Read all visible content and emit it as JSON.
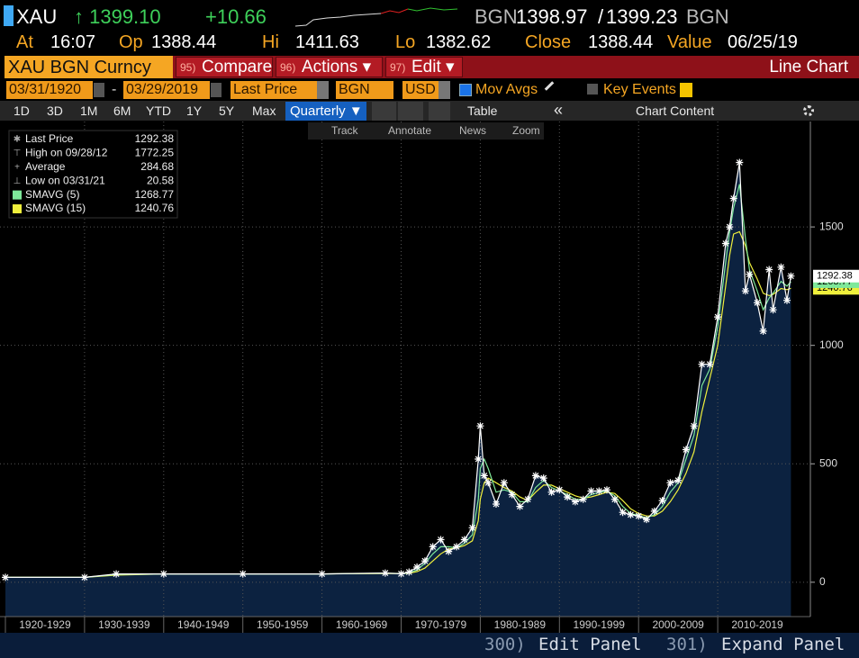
{
  "header": {
    "ticker": "XAU",
    "price": "↑ 1399.10",
    "change": "+10.66",
    "source": "BGN",
    "bid": "1398.97",
    "separator": "/",
    "ask": "1399.23",
    "source2": "BGN"
  },
  "quote": [
    {
      "label": "At",
      "value": "16:07"
    },
    {
      "label": "Op",
      "value": "1388.44"
    },
    {
      "label": "Hi",
      "value": "1411.63"
    },
    {
      "label": "Lo",
      "value": "1382.62"
    },
    {
      "label": "Close",
      "value": "1388.44"
    },
    {
      "label": "Value",
      "value": "06/25/19"
    }
  ],
  "menu": {
    "security": "XAU BGN Curncy",
    "items": [
      {
        "num": "95)",
        "label": "Compare"
      },
      {
        "num": "96)",
        "label": "Actions ▾"
      },
      {
        "num": "97)",
        "label": "Edit ▾"
      }
    ],
    "chart_type": "Line Chart"
  },
  "controls": {
    "start": "03/31/1920",
    "dash": "-",
    "end": "03/29/2019",
    "field": "Last Price",
    "source": "BGN",
    "currency": "USD",
    "mov_avgs": "Mov Avgs",
    "key_events": "Key Events"
  },
  "toolbar": {
    "periods": [
      "1D",
      "3D",
      "1M",
      "6M",
      "YTD",
      "1Y",
      "5Y",
      "Max"
    ],
    "frequency": "Quarterly ▼",
    "table": "Table",
    "collapse": "«",
    "chart_content": "Chart Content"
  },
  "tools": [
    "Track",
    "Annotate",
    "News",
    "Zoom"
  ],
  "chart_data": {
    "type": "line",
    "x": [
      1920,
      1930,
      1934,
      1940,
      1950,
      1960,
      1968,
      1970,
      1971,
      1972,
      1973,
      1974,
      1975,
      1976,
      1977,
      1978,
      1979,
      1979.75,
      1980,
      1980.5,
      1981,
      1982,
      1983,
      1984,
      1985,
      1986,
      1987,
      1988,
      1989,
      1990,
      1991,
      1992,
      1993,
      1994,
      1995,
      1996,
      1997,
      1998,
      1999,
      2000,
      2001,
      2002,
      2003,
      2004,
      2005,
      2006,
      2007,
      2008,
      2009,
      2010,
      2011,
      2011.5,
      2012,
      2012.75,
      2013.5,
      2014,
      2015,
      2015.75,
      2016.5,
      2017,
      2018,
      2018.75,
      2019.25
    ],
    "series": [
      {
        "name": "Last Price",
        "color": "#ffffff",
        "last": 1292.38,
        "values": [
          20.67,
          20.67,
          35,
          35,
          35,
          35,
          39,
          36,
          43,
          64,
          90,
          150,
          180,
          130,
          150,
          180,
          230,
          520,
          660,
          450,
          420,
          330,
          420,
          370,
          320,
          350,
          450,
          440,
          380,
          390,
          360,
          340,
          350,
          385,
          385,
          390,
          350,
          295,
          285,
          280,
          265,
          300,
          345,
          420,
          430,
          560,
          660,
          920,
          920,
          1120,
          1430,
          1500,
          1620,
          1772,
          1230,
          1300,
          1180,
          1060,
          1320,
          1150,
          1330,
          1190,
          1292.38
        ]
      },
      {
        "name": "SMAVG (5)",
        "color": "#7ee89a",
        "last": 1268.77,
        "values": [
          20.67,
          20.67,
          33,
          35,
          35,
          35,
          38,
          37,
          40,
          52,
          80,
          120,
          150,
          150,
          145,
          165,
          200,
          350,
          480,
          520,
          480,
          380,
          390,
          380,
          340,
          340,
          400,
          430,
          400,
          385,
          370,
          350,
          350,
          370,
          380,
          385,
          365,
          320,
          290,
          282,
          272,
          285,
          320,
          380,
          420,
          520,
          620,
          830,
          900,
          1080,
          1350,
          1480,
          1580,
          1680,
          1450,
          1320,
          1230,
          1150,
          1200,
          1220,
          1270,
          1250,
          1268.77
        ]
      },
      {
        "name": "SMAVG (15)",
        "color": "#f0f03c",
        "last": 1240.76,
        "values": [
          20.67,
          20.67,
          30,
          35,
          35,
          35,
          37,
          37,
          38,
          45,
          60,
          90,
          120,
          140,
          145,
          155,
          175,
          260,
          350,
          420,
          440,
          420,
          400,
          385,
          360,
          345,
          380,
          410,
          410,
          395,
          380,
          365,
          355,
          360,
          370,
          380,
          375,
          345,
          310,
          290,
          280,
          280,
          300,
          340,
          390,
          460,
          550,
          720,
          860,
          1000,
          1250,
          1380,
          1470,
          1480,
          1420,
          1350,
          1280,
          1220,
          1210,
          1215,
          1240,
          1235,
          1240.76
        ]
      }
    ],
    "stats": [
      {
        "label": "High on 09/28/12",
        "value": 1772.25
      },
      {
        "label": "Average",
        "value": 284.68
      },
      {
        "label": "Low on 03/31/21",
        "value": 20.58
      }
    ],
    "area_color": "#0c2240",
    "xlim": [
      1920,
      2020
    ],
    "xticks": [
      {
        "value": 1920,
        "label": "1920-1929"
      },
      {
        "value": 1930,
        "label": "1930-1939"
      },
      {
        "value": 1940,
        "label": "1940-1949"
      },
      {
        "value": 1950,
        "label": "1950-1959"
      },
      {
        "value": 1960,
        "label": "1960-1969"
      },
      {
        "value": 1970,
        "label": "1970-1979"
      },
      {
        "value": 1980,
        "label": "1980-1989"
      },
      {
        "value": 1990,
        "label": "1990-1999"
      },
      {
        "value": 2000,
        "label": "2000-2009"
      },
      {
        "value": 2010,
        "label": "2010-2019"
      }
    ],
    "ylim": [
      -145,
      1945
    ],
    "yticks": [
      0,
      500,
      1000,
      1500
    ],
    "grid": true
  },
  "footer": [
    {
      "num": "300)",
      "label": "Edit Panel"
    },
    {
      "num": "301)",
      "label": "Expand Panel"
    }
  ]
}
